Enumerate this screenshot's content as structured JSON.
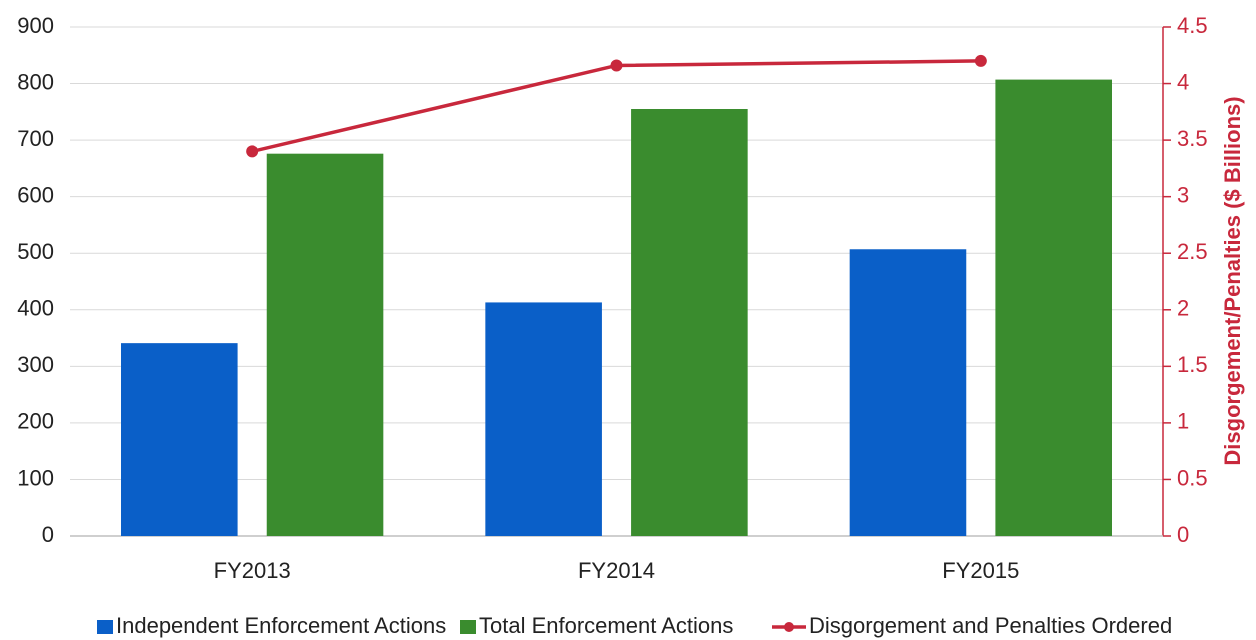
{
  "chart_data": {
    "type": "bar",
    "categories": [
      "FY2013",
      "FY2014",
      "FY2015"
    ],
    "series": [
      {
        "name": "Independent Enforcement Actions",
        "color": "#0a5fc8",
        "values": [
          341,
          413,
          507
        ]
      },
      {
        "name": "Total Enforcement Actions",
        "color": "#3a8c2e",
        "values": [
          676,
          755,
          807
        ]
      },
      {
        "name": "Disgorgement and Penalties Ordered",
        "color": "#c8283c",
        "type": "line",
        "axis": "y2",
        "values": [
          3.4,
          4.16,
          4.2
        ]
      }
    ],
    "ylim": [
      0,
      900
    ],
    "yticks": [
      0,
      100,
      200,
      300,
      400,
      500,
      600,
      700,
      800,
      900
    ],
    "y2lim": [
      0,
      4.5
    ],
    "y2ticks": [
      0,
      0.5,
      1,
      1.5,
      2,
      2.5,
      3,
      3.5,
      4,
      4.5
    ],
    "y2label": "Disgorgement/Penalties ($ Billions)",
    "grid": true,
    "legend": "bottom"
  }
}
